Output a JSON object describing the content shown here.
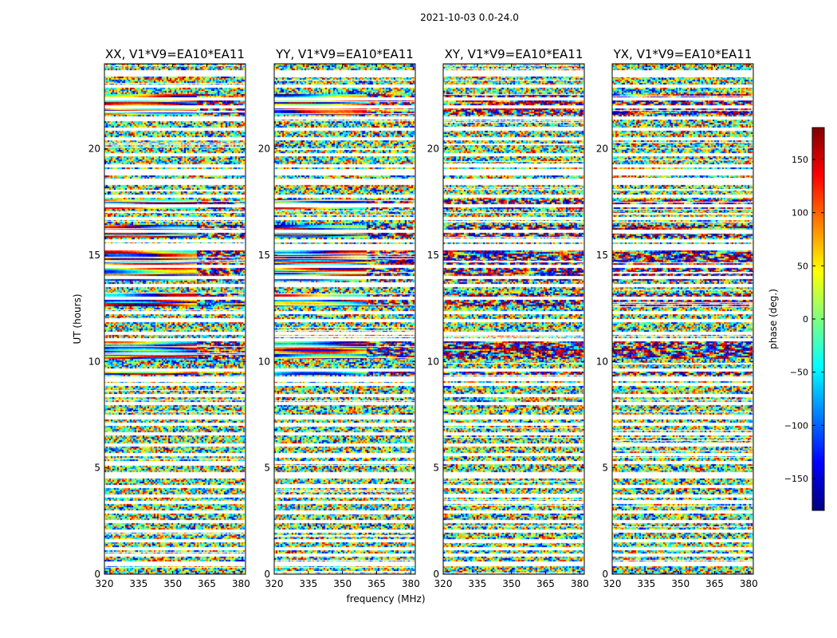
{
  "figure": {
    "suptitle": "2021-10-03 0.0-24.0"
  },
  "chart_data": {
    "type": "heatmap",
    "panels": [
      {
        "title": "XX, V1*V9=EA10*EA11",
        "pol": "XX"
      },
      {
        "title": "YY, V1*V9=EA10*EA11",
        "pol": "YY"
      },
      {
        "title": "XY, V1*V9=EA10*EA11",
        "pol": "XY"
      },
      {
        "title": "YX, V1*V9=EA10*EA11",
        "pol": "YX"
      }
    ],
    "xlabel": "frequency (MHz)",
    "ylabel": "UT (hours)",
    "xlim": [
      320,
      382
    ],
    "ylim": [
      0,
      24
    ],
    "xticks": [
      320,
      335,
      350,
      365,
      380
    ],
    "yticks": [
      0,
      5,
      10,
      15,
      20
    ],
    "colorbar": {
      "label": "phase (deg.)",
      "range": [
        -180,
        180
      ],
      "ticks": [
        150,
        100,
        50,
        0,
        -50,
        -100,
        -150
      ],
      "colormap": "jet",
      "colors": [
        "#00007f",
        "#0000ff",
        "#007fff",
        "#00ffff",
        "#7fff7f",
        "#ffff00",
        "#ff7f00",
        "#ff0000",
        "#7f0000"
      ]
    },
    "flagged_rows_ut": [
      0.45,
      0.55,
      0.92,
      1.2,
      1.6,
      2.05,
      2.45,
      2.9,
      3.35,
      3.7,
      4.1,
      4.6,
      4.75,
      5.25,
      5.6,
      6.05,
      6.6,
      7.05,
      7.35,
      7.45,
      8.05,
      8.4,
      8.9,
      9.15,
      9.2,
      9.62,
      11.0,
      11.35,
      11.9,
      12.3,
      12.95,
      13.6,
      13.95,
      14.45,
      15.3,
      15.45,
      15.65,
      16.1,
      16.75,
      17.35,
      17.8,
      18.4,
      18.5,
      18.8,
      18.95,
      19.2,
      19.75,
      20.5,
      20.95,
      21.45,
      21.95,
      22.35,
      22.95,
      23.45,
      23.6
    ],
    "structured_bands_ut": [
      [
        9.4,
        9.7
      ],
      [
        10.1,
        11.0
      ],
      [
        12.6,
        13.2
      ],
      [
        13.8,
        15.2
      ],
      [
        15.8,
        16.4
      ],
      [
        17.2,
        17.6
      ],
      [
        21.6,
        22.6
      ]
    ]
  }
}
